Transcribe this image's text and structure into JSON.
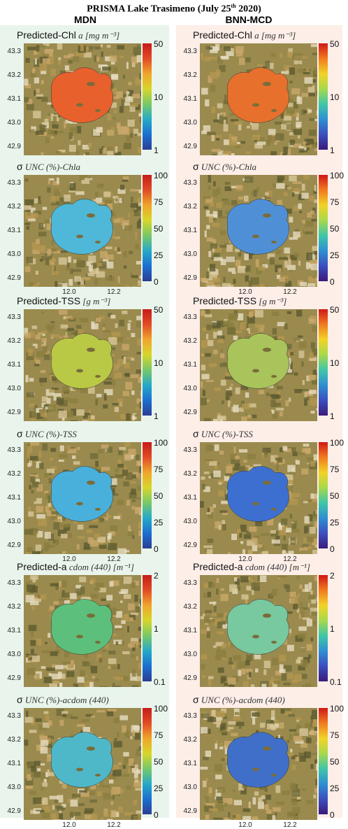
{
  "figure_title": "PRISMA Lake Trasimeno (July 25",
  "figure_title_sup": "th",
  "figure_title_end": " 2020)",
  "columns": [
    {
      "name": "MDN"
    },
    {
      "name": "BNN-MCD"
    }
  ],
  "colors": {
    "left_panel_bg": "#e9f5ec",
    "right_panel_bg": "#fdeee8",
    "colorbar_mdn": [
      "#2b3d95",
      "#1b6fd0",
      "#27a9c8",
      "#77c968",
      "#d8d62a",
      "#f0a52a",
      "#e24b25",
      "#c71a1a"
    ],
    "colorbar_bnn": [
      "#3b1a7a",
      "#3a4fbf",
      "#2e8fd2",
      "#3fc6a8",
      "#a6d94a",
      "#f2d326",
      "#f07b1f",
      "#cf1717"
    ]
  },
  "y_ticks": [
    "43.3",
    "43.2",
    "43.1",
    "43.0",
    "42.9"
  ],
  "x_ticks": [
    "12.0",
    "12.2"
  ],
  "panels": [
    {
      "title_main": "Predicted-Chl",
      "title_math": "a [mg m⁻³]",
      "cbar_ticks": [
        "50",
        "10",
        "1"
      ]
    },
    {
      "title_main": "σ",
      "title_math": "UNC (%)-Chla",
      "cbar_ticks": [
        "100",
        "75",
        "50",
        "25",
        "0"
      ]
    },
    {
      "title_main": "Predicted-TSS",
      "title_math": "[g m⁻³]",
      "cbar_ticks": [
        "50",
        "10",
        "1"
      ]
    },
    {
      "title_main": "σ",
      "title_math": "UNC (%)-TSS",
      "cbar_ticks": [
        "100",
        "75",
        "50",
        "25",
        "0"
      ]
    },
    {
      "title_main": "Predicted-a",
      "title_math": "cdom (440) [m⁻¹]",
      "cbar_ticks": [
        "2",
        "1",
        "0.1"
      ]
    },
    {
      "title_main": "σ",
      "title_math": "UNC (%)-acdom (440)",
      "cbar_ticks": [
        "100",
        "75",
        "50",
        "25",
        "0"
      ]
    }
  ]
}
